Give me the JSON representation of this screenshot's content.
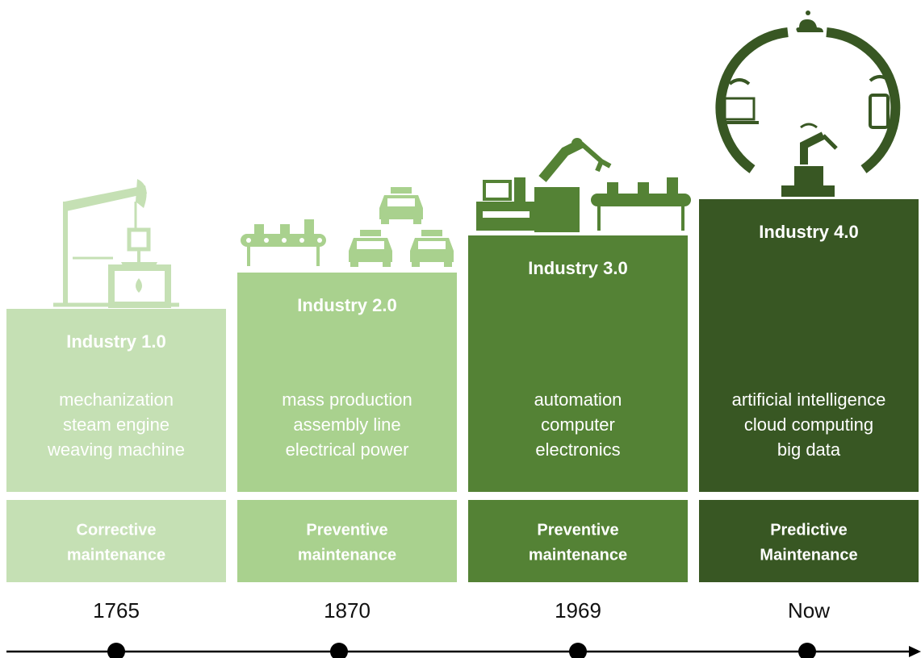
{
  "stages": [
    {
      "title": "Industry 1.0",
      "features": [
        "mechanization",
        "steam engine",
        "weaving machine"
      ],
      "maintenance": [
        "Corrective",
        "maintenance"
      ],
      "year": "1765"
    },
    {
      "title": "Industry 2.0",
      "features": [
        "mass production",
        "assembly line",
        "electrical power"
      ],
      "maintenance": [
        "Preventive",
        "maintenance"
      ],
      "year": "1870"
    },
    {
      "title": "Industry 3.0",
      "features": [
        "automation",
        "computer",
        "electronics"
      ],
      "maintenance": [
        "Preventive",
        "maintenance"
      ],
      "year": "1969"
    },
    {
      "title": "Industry 4.0",
      "features": [
        "artificial intelligence",
        "cloud computing",
        "big data"
      ],
      "maintenance": [
        "Predictive",
        "Maintenance"
      ],
      "year": "Now"
    }
  ]
}
